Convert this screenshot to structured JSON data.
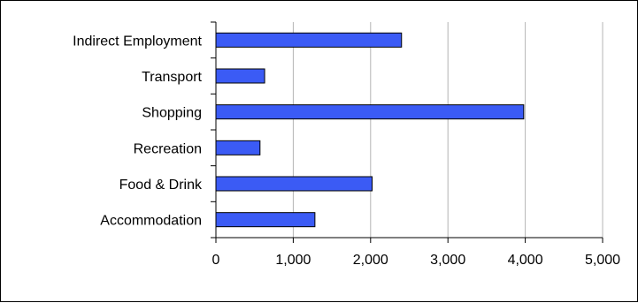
{
  "chart_data": {
    "type": "bar",
    "orientation": "horizontal",
    "title": "",
    "xlabel": "",
    "ylabel": "",
    "categories": [
      "Indirect Employment",
      "Transport",
      "Shopping",
      "Recreation",
      "Food & Drink",
      "Accommodation"
    ],
    "values": [
      2400,
      630,
      3980,
      570,
      2020,
      1280
    ],
    "xlim": [
      0,
      5000
    ],
    "x_ticks": [
      "0",
      "1,000",
      "2,000",
      "3,000",
      "4,000",
      "5,000"
    ],
    "x_tick_values": [
      0,
      1000,
      2000,
      3000,
      4000,
      5000
    ],
    "grid": "vertical",
    "legend": "none",
    "colors": {
      "bar_fill": "#3b5bf5",
      "bar_stroke": "#000000",
      "grid": "#b4b4b4",
      "axis": "#000000"
    }
  }
}
